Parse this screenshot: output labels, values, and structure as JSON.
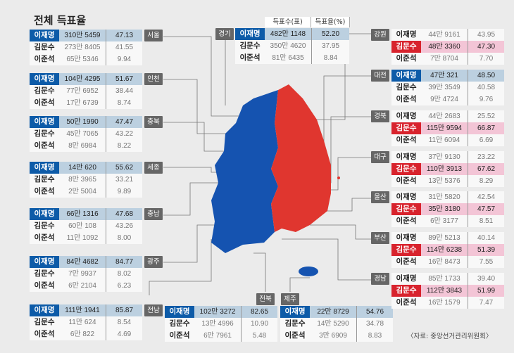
{
  "title": "전체 득표율",
  "column_headers": [
    "득표수(표)",
    "득표율(%)"
  ],
  "source": "〈자료: 중앙선거관리위원회〉",
  "colors": {
    "democratic": "#0d5ba8",
    "ppp": "#d8232d",
    "blue_row": "#bcd0e0",
    "red_row": "#f3c5d6",
    "map_blue": "#1553b0",
    "map_red": "#e0362f"
  },
  "chart_data": {
    "type": "table",
    "title": "전체 득표율",
    "columns": [
      "득표수(표)",
      "득표율(%)"
    ],
    "regions": [
      {
        "region": "서울",
        "winner": "blue",
        "rows": [
          {
            "name": "이재명",
            "votes": "310만 5459",
            "pct": "47.13"
          },
          {
            "name": "김문수",
            "votes": "273만 8405",
            "pct": "41.55"
          },
          {
            "name": "이준석",
            "votes": "65만 5346",
            "pct": "9.94"
          }
        ]
      },
      {
        "region": "인천",
        "winner": "blue",
        "rows": [
          {
            "name": "이재명",
            "votes": "104만 4295",
            "pct": "51.67"
          },
          {
            "name": "김문수",
            "votes": "77만 6952",
            "pct": "38.44"
          },
          {
            "name": "이준석",
            "votes": "17만 6739",
            "pct": "8.74"
          }
        ]
      },
      {
        "region": "충북",
        "winner": "blue",
        "rows": [
          {
            "name": "이재명",
            "votes": "50만 1990",
            "pct": "47.47"
          },
          {
            "name": "김문수",
            "votes": "45만 7065",
            "pct": "43.22"
          },
          {
            "name": "이준석",
            "votes": "8만 6984",
            "pct": "8.22"
          }
        ]
      },
      {
        "region": "세종",
        "winner": "blue",
        "rows": [
          {
            "name": "이재명",
            "votes": "14만 620",
            "pct": "55.62"
          },
          {
            "name": "김문수",
            "votes": "8만 3965",
            "pct": "33.21"
          },
          {
            "name": "이준석",
            "votes": "2만 5004",
            "pct": "9.89"
          }
        ]
      },
      {
        "region": "충남",
        "winner": "blue",
        "rows": [
          {
            "name": "이재명",
            "votes": "66만 1316",
            "pct": "47.68"
          },
          {
            "name": "김문수",
            "votes": "60만 108",
            "pct": "43.26"
          },
          {
            "name": "이준석",
            "votes": "11만 1092",
            "pct": "8.00"
          }
        ]
      },
      {
        "region": "광주",
        "winner": "blue",
        "rows": [
          {
            "name": "이재명",
            "votes": "84만 4682",
            "pct": "84.77"
          },
          {
            "name": "김문수",
            "votes": "7만 9937",
            "pct": "8.02"
          },
          {
            "name": "이준석",
            "votes": "6만 2104",
            "pct": "6.23"
          }
        ]
      },
      {
        "region": "전남",
        "winner": "blue",
        "rows": [
          {
            "name": "이재명",
            "votes": "111만 1941",
            "pct": "85.87"
          },
          {
            "name": "김문수",
            "votes": "11만 624",
            "pct": "8.54"
          },
          {
            "name": "이준석",
            "votes": "6만 822",
            "pct": "4.69"
          }
        ]
      },
      {
        "region": "경기",
        "winner": "blue",
        "rows": [
          {
            "name": "이재명",
            "votes": "482만 1148",
            "pct": "52.20"
          },
          {
            "name": "김문수",
            "votes": "350만 4620",
            "pct": "37.95"
          },
          {
            "name": "이준석",
            "votes": "81만 6435",
            "pct": "8.84"
          }
        ]
      },
      {
        "region": "전북",
        "winner": "blue",
        "rows": [
          {
            "name": "이재명",
            "votes": "102만 3272",
            "pct": "82.65"
          },
          {
            "name": "김문수",
            "votes": "13만 4996",
            "pct": "10.90"
          },
          {
            "name": "이준석",
            "votes": "6만 7961",
            "pct": "5.48"
          }
        ]
      },
      {
        "region": "제주",
        "winner": "blue",
        "rows": [
          {
            "name": "이재명",
            "votes": "22만 8729",
            "pct": "54.76"
          },
          {
            "name": "김문수",
            "votes": "14만 5290",
            "pct": "34.78"
          },
          {
            "name": "이준석",
            "votes": "3만 6909",
            "pct": "8.83"
          }
        ]
      },
      {
        "region": "강원",
        "winner": "red",
        "rows": [
          {
            "name": "이재명",
            "votes": "44만 9161",
            "pct": "43.95"
          },
          {
            "name": "김문수",
            "votes": "48만 3360",
            "pct": "47.30"
          },
          {
            "name": "이준석",
            "votes": "7만 8704",
            "pct": "7.70"
          }
        ]
      },
      {
        "region": "대전",
        "winner": "blue",
        "rows": [
          {
            "name": "이재명",
            "votes": "47만 321",
            "pct": "48.50"
          },
          {
            "name": "김문수",
            "votes": "39만 3549",
            "pct": "40.58"
          },
          {
            "name": "이준석",
            "votes": "9만 4724",
            "pct": "9.76"
          }
        ]
      },
      {
        "region": "경북",
        "winner": "red",
        "rows": [
          {
            "name": "이재명",
            "votes": "44만 2683",
            "pct": "25.52"
          },
          {
            "name": "김문수",
            "votes": "115만 9594",
            "pct": "66.87"
          },
          {
            "name": "이준석",
            "votes": "11만 6094",
            "pct": "6.69"
          }
        ]
      },
      {
        "region": "대구",
        "winner": "red",
        "rows": [
          {
            "name": "이재명",
            "votes": "37만 9130",
            "pct": "23.22"
          },
          {
            "name": "김문수",
            "votes": "110만 3913",
            "pct": "67.62"
          },
          {
            "name": "이준석",
            "votes": "13만 5376",
            "pct": "8.29"
          }
        ]
      },
      {
        "region": "울산",
        "winner": "red",
        "rows": [
          {
            "name": "이재명",
            "votes": "31만 5820",
            "pct": "42.54"
          },
          {
            "name": "김문수",
            "votes": "35만 3180",
            "pct": "47.57"
          },
          {
            "name": "이준석",
            "votes": "6만 3177",
            "pct": "8.51"
          }
        ]
      },
      {
        "region": "부산",
        "winner": "red",
        "rows": [
          {
            "name": "이재명",
            "votes": "89만 5213",
            "pct": "40.14"
          },
          {
            "name": "김문수",
            "votes": "114만 6238",
            "pct": "51.39"
          },
          {
            "name": "이준석",
            "votes": "16만 8473",
            "pct": "7.55"
          }
        ]
      },
      {
        "region": "경남",
        "winner": "red",
        "rows": [
          {
            "name": "이재명",
            "votes": "85만 1733",
            "pct": "39.40"
          },
          {
            "name": "김문수",
            "votes": "112만 3843",
            "pct": "51.99"
          },
          {
            "name": "이준석",
            "votes": "16만 1579",
            "pct": "7.47"
          }
        ]
      }
    ]
  }
}
